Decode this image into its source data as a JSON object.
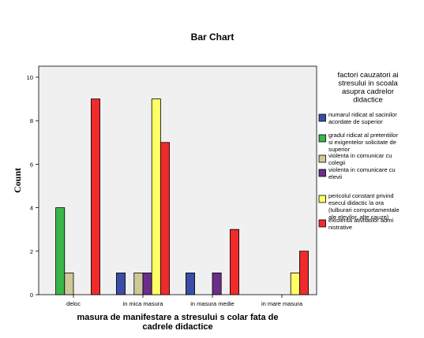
{
  "chart_data": {
    "type": "bar",
    "title": "Bar Chart",
    "ylabel": "Count",
    "xlabel_lines": [
      "masura de manifestare a stresului s colar fata de",
      "cadrele didactice"
    ],
    "ylim": [
      0,
      10
    ],
    "yticks": [
      0,
      2,
      4,
      6,
      8,
      10
    ],
    "categories": [
      "deloc",
      "in mica masura",
      "in masura medie",
      "in mare masura"
    ],
    "legend_title_lines": [
      "factori cauzatori ai",
      "stresului in scoala",
      "asupra cadrelor",
      "didactice"
    ],
    "legend_placement": "right",
    "grid": false,
    "plot_background": "#f0f0f0",
    "series": [
      {
        "name_lines": [
          "numarul ridicat al sacinilor",
          "acordate de superior"
        ],
        "color": "#3c4ea4",
        "values": [
          0,
          1,
          1,
          0
        ]
      },
      {
        "name_lines": [
          "gradul ridicat al pretentiilor",
          "si exigentelor solicitate de",
          "superior"
        ],
        "color": "#3ab54a",
        "values": [
          4,
          0,
          0,
          0
        ]
      },
      {
        "name_lines": [
          "violenta in comunicar cu",
          "colegii"
        ],
        "color": "#cfc89a",
        "values": [
          1,
          1,
          0,
          0
        ]
      },
      {
        "name_lines": [
          "violenta in comunicare cu",
          "elevii"
        ],
        "color": "#6b2d8a",
        "values": [
          0,
          1,
          1,
          0
        ]
      },
      {
        "name_lines": [
          "pericolul constant privind",
          "esecul didactic la ora",
          "(tulburari comportamentale",
          "ale elevilor, alte cauze)"
        ],
        "color": "#ffff66",
        "values": [
          0,
          9,
          0,
          1
        ]
      },
      {
        "name_lines": [
          "existenta ativitatilor admi",
          "nistrative"
        ],
        "color": "#ef2b2b",
        "values": [
          9,
          7,
          3,
          2
        ]
      }
    ]
  }
}
